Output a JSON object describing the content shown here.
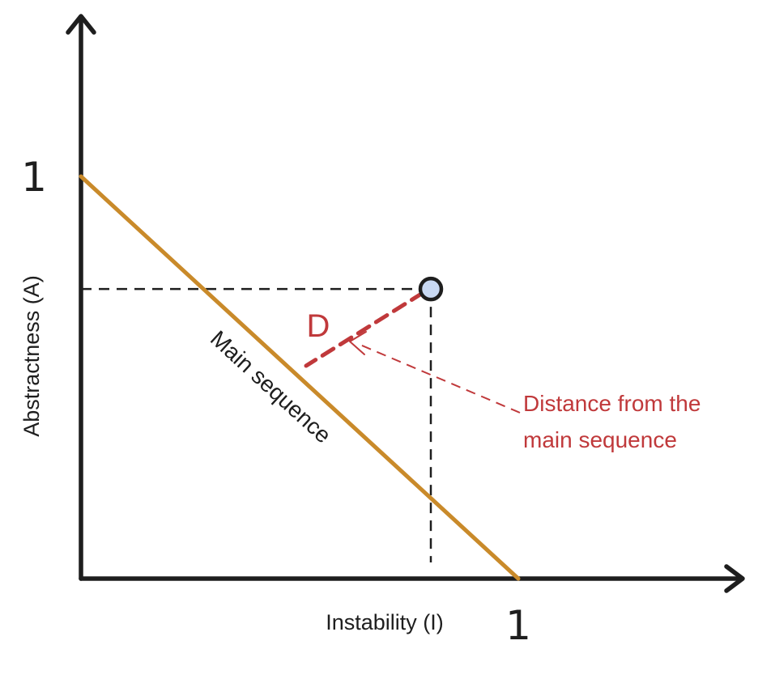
{
  "axes": {
    "y_label": "Abstractness (A)",
    "x_label": "Instability (I)",
    "y_max_tick": "1",
    "x_max_tick": "1"
  },
  "main_sequence": {
    "label": "Main sequence",
    "from": {
      "I": 0,
      "A": 1
    },
    "to": {
      "I": 1,
      "A": 0
    }
  },
  "component": {
    "I": 0.8,
    "A": 0.72
  },
  "distance": {
    "label": "D",
    "annotation_line1": "Distance from the",
    "annotation_line2": "main sequence"
  },
  "colors": {
    "axis": "#1e1e1e",
    "main_sequence": "#c98a2a",
    "distance": "#c0393b",
    "point_fill": "#c9d9f3"
  },
  "icons": {
    "y_arrow": "arrow-up-icon",
    "x_arrow": "arrow-right-icon",
    "annotation_arrow": "arrow-head-icon"
  }
}
